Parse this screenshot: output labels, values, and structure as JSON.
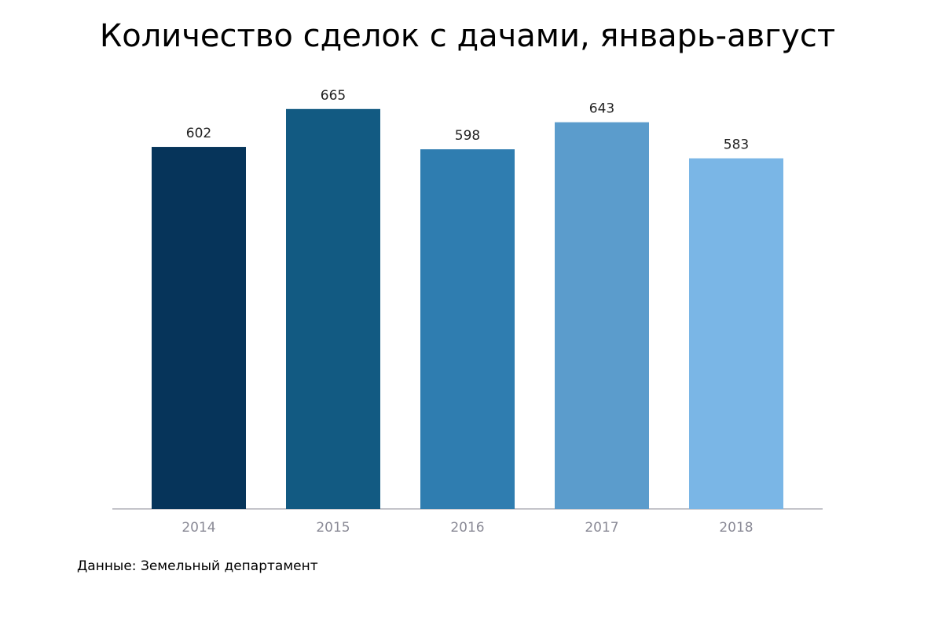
{
  "chart_data": {
    "type": "bar",
    "title": "Количество сделок с дачами, январь-август",
    "categories": [
      "2014",
      "2015",
      "2016",
      "2017",
      "2018"
    ],
    "values": [
      602,
      665,
      598,
      643,
      583
    ],
    "colors": [
      "#06345a",
      "#125a82",
      "#2f7db0",
      "#5b9ccc",
      "#7ab6e6"
    ],
    "ylim": [
      0,
      700
    ],
    "source": "Данные: Земельный департамент"
  }
}
